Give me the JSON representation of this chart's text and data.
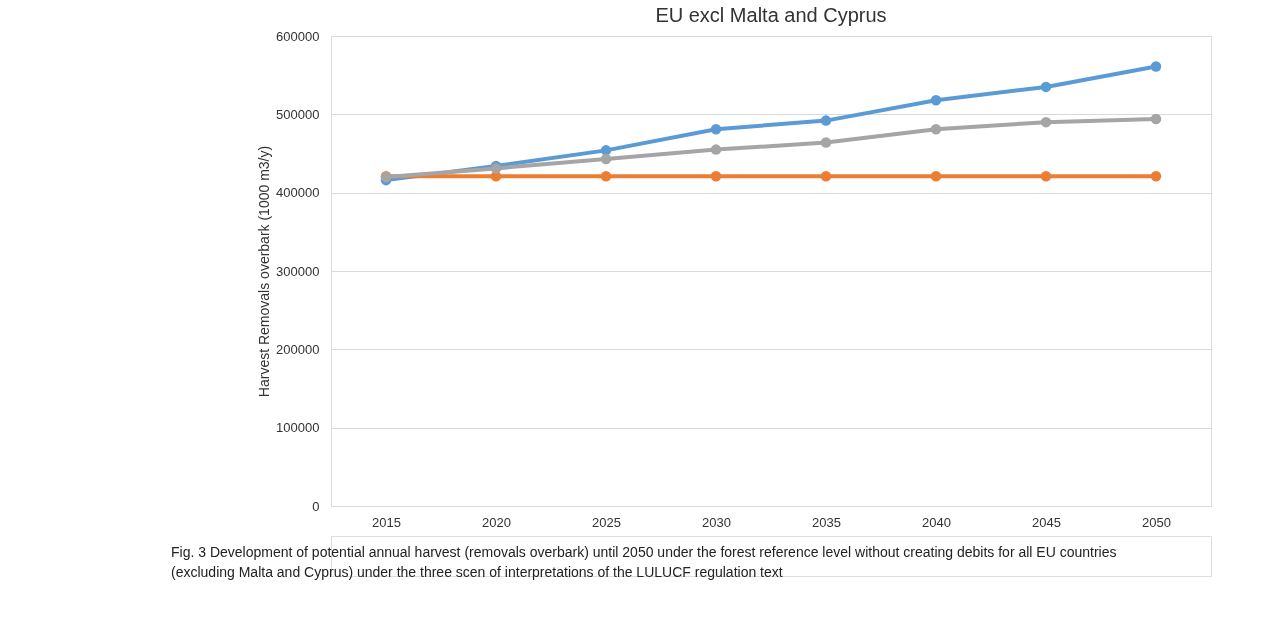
{
  "chart_data": {
    "type": "line",
    "title": "EU excl Malta and Cyprus",
    "ylabel": "Harvest Removals overbark (1000 m3/y)",
    "categories": [
      "2015",
      "2020",
      "2025",
      "2030",
      "2035",
      "2040",
      "2045",
      "2050"
    ],
    "series": [
      {
        "color": "#5b9bd5",
        "values": [
          416000,
          434000,
          454000,
          481000,
          492000,
          518000,
          535000,
          561000
        ]
      },
      {
        "color": "#ed7d31",
        "values": [
          421000,
          421000,
          421000,
          421000,
          421000,
          421000,
          421000,
          421000
        ]
      },
      {
        "color": "#a5a5a5",
        "values": [
          420000,
          431000,
          443000,
          455000,
          464000,
          481000,
          490000,
          494000
        ]
      }
    ],
    "ylim": [
      0,
      600000
    ],
    "yticks": [
      0,
      100000,
      200000,
      300000,
      400000,
      500000,
      600000
    ],
    "grid": "y",
    "legend": false,
    "marker": "circle",
    "line_style": "solid",
    "annotations": [
      "Fig. 3  Development of potential annual harvest (removals overbark) until 2050 under the forest reference level without creating debits for all EU countries (excluding Malta and Cyprus) under the three scen of interpretations of the LULUCF regulation text"
    ]
  }
}
